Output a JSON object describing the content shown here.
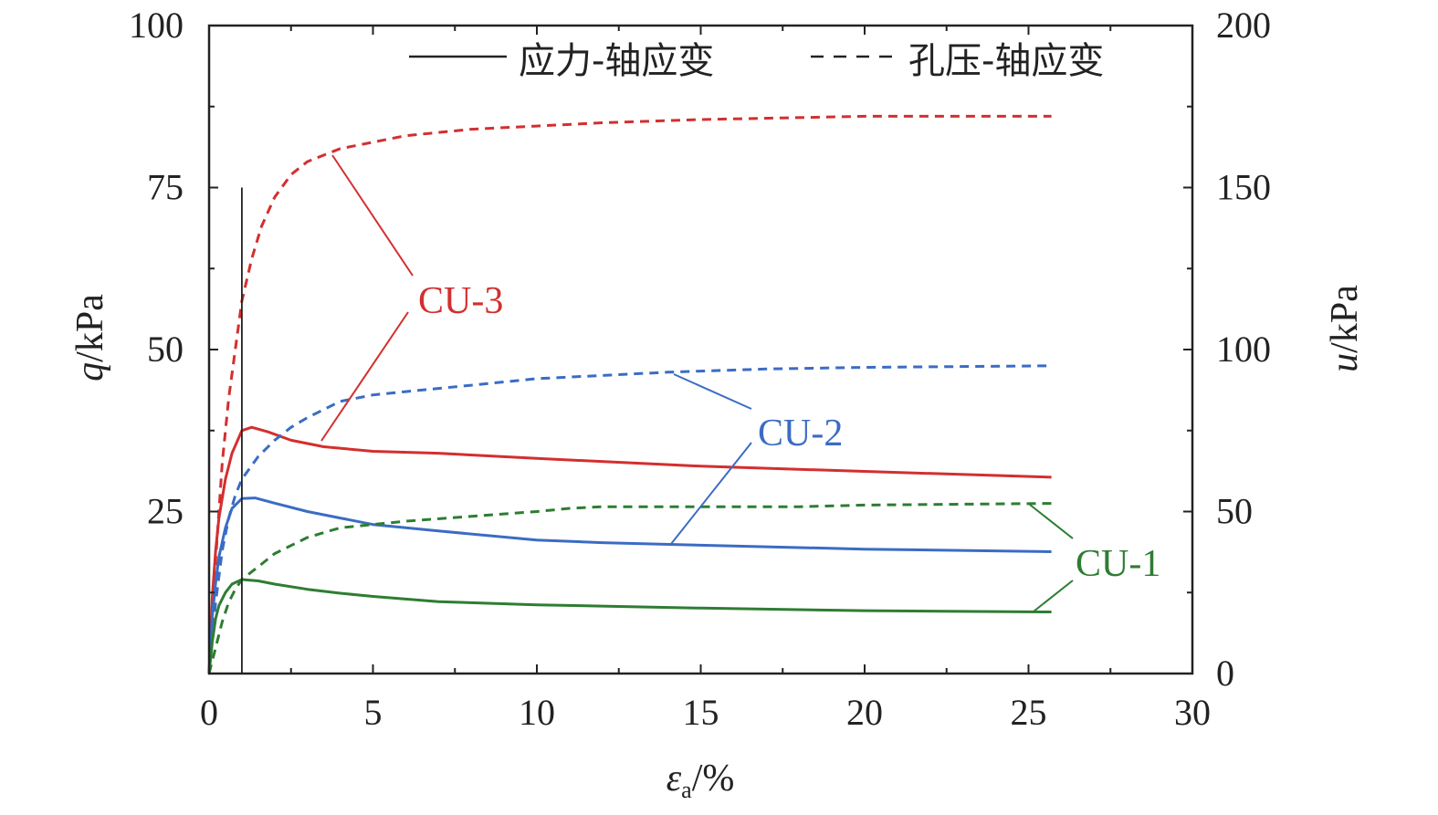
{
  "chart_data": {
    "type": "line",
    "xlabel": "ε",
    "xlabel_sub": "a",
    "xlabel_unit": "/%",
    "ylabel_left": "q",
    "ylabel_left_unit": "/kPa",
    "ylabel_right": "u",
    "ylabel_right_unit": "/kPa",
    "xlim": [
      0,
      30
    ],
    "ylim_left": [
      0,
      100
    ],
    "ylim_right": [
      0,
      200
    ],
    "x_ticks": [
      0,
      5,
      10,
      15,
      20,
      25,
      30
    ],
    "y_left_ticks": [
      25,
      50,
      75,
      100
    ],
    "y_right_ticks": [
      0,
      50,
      100,
      150,
      200
    ],
    "x_tick_labels": [
      "0",
      "5",
      "10",
      "15",
      "20",
      "25",
      "30"
    ],
    "y_left_tick_labels": [
      "25",
      "50",
      "75",
      "100"
    ],
    "y_right_tick_labels": [
      "0",
      "50",
      "100",
      "150",
      "200"
    ],
    "grid": false,
    "legend_position": "top-right",
    "legend": [
      {
        "label": "应力-轴应变",
        "style": "solid"
      },
      {
        "label": "孔压-轴应变",
        "style": "dashed"
      }
    ],
    "vertical_reference_line": {
      "x": 1.0,
      "y_top_left_axis": 75
    },
    "series": [
      {
        "name": "CU-3",
        "color": "#d32f2f",
        "quantity": "q",
        "axis": "left",
        "style": "solid",
        "x": [
          0,
          0.1,
          0.2,
          0.3,
          0.5,
          0.7,
          1.0,
          1.3,
          1.8,
          2.5,
          3.5,
          5,
          7,
          10,
          15,
          20,
          25.7
        ],
        "y": [
          0,
          12,
          19,
          24,
          30,
          34,
          37.5,
          38,
          37.3,
          36,
          35,
          34.3,
          34,
          33.2,
          32,
          31.2,
          30.3
        ]
      },
      {
        "name": "CU-3",
        "color": "#d32f2f",
        "quantity": "u",
        "axis": "right",
        "style": "dashed",
        "x": [
          0,
          0.2,
          0.4,
          0.6,
          0.8,
          1.0,
          1.3,
          1.6,
          2.0,
          2.5,
          3.0,
          3.5,
          4.0,
          5,
          6,
          8,
          10,
          12,
          15,
          20,
          25.7
        ],
        "y": [
          0,
          35,
          65,
          85,
          100,
          115,
          128,
          138,
          147,
          154,
          158,
          160,
          162,
          164,
          166,
          168,
          169,
          170,
          171,
          172,
          172
        ]
      },
      {
        "name": "CU-2",
        "color": "#3b6cc4",
        "quantity": "q",
        "axis": "left",
        "style": "solid",
        "x": [
          0,
          0.1,
          0.2,
          0.3,
          0.5,
          0.7,
          1.0,
          1.4,
          2.0,
          3.0,
          4.0,
          5,
          7,
          10,
          12,
          15,
          20,
          25.7
        ],
        "y": [
          0,
          9,
          14,
          18,
          22.5,
          25.5,
          27,
          27.1,
          26.3,
          25,
          24,
          23,
          22,
          20.6,
          20.2,
          19.8,
          19.2,
          18.8
        ]
      },
      {
        "name": "CU-2",
        "color": "#3b6cc4",
        "quantity": "u",
        "axis": "right",
        "style": "dashed",
        "x": [
          0,
          0.2,
          0.4,
          0.6,
          0.8,
          1.0,
          1.5,
          2.0,
          2.5,
          3.0,
          4.0,
          5,
          6,
          8,
          10,
          12,
          14,
          17,
          20,
          25.7
        ],
        "y": [
          0,
          22,
          38,
          48,
          55,
          60,
          67,
          72,
          76,
          79,
          84,
          86,
          87,
          89,
          91,
          92,
          93,
          94,
          94.5,
          95
        ]
      },
      {
        "name": "CU-1",
        "color": "#2e7d32",
        "quantity": "q",
        "axis": "left",
        "style": "solid",
        "x": [
          0,
          0.1,
          0.2,
          0.3,
          0.5,
          0.7,
          1.0,
          1.5,
          2.0,
          3.0,
          4.0,
          5,
          7,
          10,
          15,
          20,
          25.7
        ],
        "y": [
          0,
          5,
          8.5,
          10.5,
          12.5,
          13.8,
          14.5,
          14.3,
          13.8,
          13,
          12.4,
          11.9,
          11.1,
          10.6,
          10.1,
          9.7,
          9.5
        ]
      },
      {
        "name": "CU-1",
        "color": "#2e7d32",
        "quantity": "u",
        "axis": "right",
        "style": "dashed",
        "x": [
          0,
          0.2,
          0.4,
          0.6,
          0.8,
          1.0,
          1.5,
          2.0,
          3.0,
          4.0,
          5,
          6,
          8,
          10,
          11,
          12,
          15,
          18,
          20,
          25.7
        ],
        "y": [
          0,
          8,
          16,
          22,
          26,
          29,
          33,
          37,
          42,
          45,
          46,
          47,
          48.5,
          50,
          51,
          51.5,
          51.5,
          51.5,
          52,
          52.5
        ]
      }
    ],
    "annotations": [
      {
        "text": "CU-3",
        "color": "#d32f2f"
      },
      {
        "text": "CU-2",
        "color": "#3b6cc4"
      },
      {
        "text": "CU-1",
        "color": "#2e7d32"
      }
    ]
  }
}
